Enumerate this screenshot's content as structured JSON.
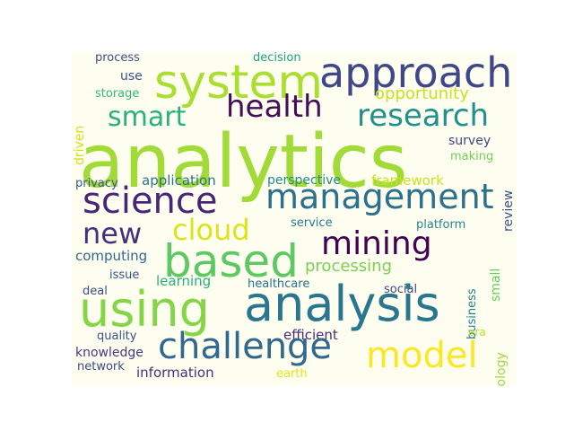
{
  "wordcloud": {
    "words": [
      {
        "text": "analytics",
        "color": "#a2da37"
      },
      {
        "text": "system",
        "color": "#aade31"
      },
      {
        "text": "approach",
        "color": "#3f4788"
      },
      {
        "text": "health",
        "color": "#440c59"
      },
      {
        "text": "smart",
        "color": "#2ab07f"
      },
      {
        "text": "research",
        "color": "#21908d"
      },
      {
        "text": "opportunity",
        "color": "#c6e221"
      },
      {
        "text": "process",
        "color": "#3e4c8a"
      },
      {
        "text": "decision",
        "color": "#1f9e89"
      },
      {
        "text": "use",
        "color": "#3b528b"
      },
      {
        "text": "storage",
        "color": "#35b779"
      },
      {
        "text": "driven",
        "color": "#d2e21b"
      },
      {
        "text": "survey",
        "color": "#414487"
      },
      {
        "text": "making",
        "color": "#70cf57"
      },
      {
        "text": "review",
        "color": "#3b528b"
      },
      {
        "text": "science",
        "color": "#482677"
      },
      {
        "text": "management",
        "color": "#2d708e"
      },
      {
        "text": "application",
        "color": "#2c728e"
      },
      {
        "text": "perspective",
        "color": "#238a8d"
      },
      {
        "text": "framework",
        "color": "#cae11f"
      },
      {
        "text": "privacy",
        "color": "#39568c"
      },
      {
        "text": "new",
        "color": "#46307e"
      },
      {
        "text": "cloud",
        "color": "#dde318"
      },
      {
        "text": "mining",
        "color": "#440154"
      },
      {
        "text": "service",
        "color": "#2a788e"
      },
      {
        "text": "platform",
        "color": "#25858e"
      },
      {
        "text": "based",
        "color": "#5ec962"
      },
      {
        "text": "processing",
        "color": "#7ad151"
      },
      {
        "text": "computing",
        "color": "#31688e"
      },
      {
        "text": "issue",
        "color": "#3b528b"
      },
      {
        "text": "small",
        "color": "#67cc5c"
      },
      {
        "text": "business",
        "color": "#26828e"
      },
      {
        "text": "learning",
        "color": "#29af7f"
      },
      {
        "text": "healthcare",
        "color": "#2c728e"
      },
      {
        "text": "deal",
        "color": "#3e4a89"
      },
      {
        "text": "social",
        "color": "#404688"
      },
      {
        "text": "using",
        "color": "#86d549"
      },
      {
        "text": "analysis",
        "color": "#2a768e"
      },
      {
        "text": "technology",
        "color": "#9bd93c"
      },
      {
        "text": "quality",
        "color": "#3b528b"
      },
      {
        "text": "efficient",
        "color": "#472c7a"
      },
      {
        "text": "era",
        "color": "#b5de2b"
      },
      {
        "text": "challenge",
        "color": "#31688e"
      },
      {
        "text": "model",
        "color": "#fde725"
      },
      {
        "text": "knowledge",
        "color": "#443a83"
      },
      {
        "text": "network",
        "color": "#3e4989"
      },
      {
        "text": "information",
        "color": "#46307e"
      },
      {
        "text": "earth",
        "color": "#e5e419"
      }
    ]
  }
}
